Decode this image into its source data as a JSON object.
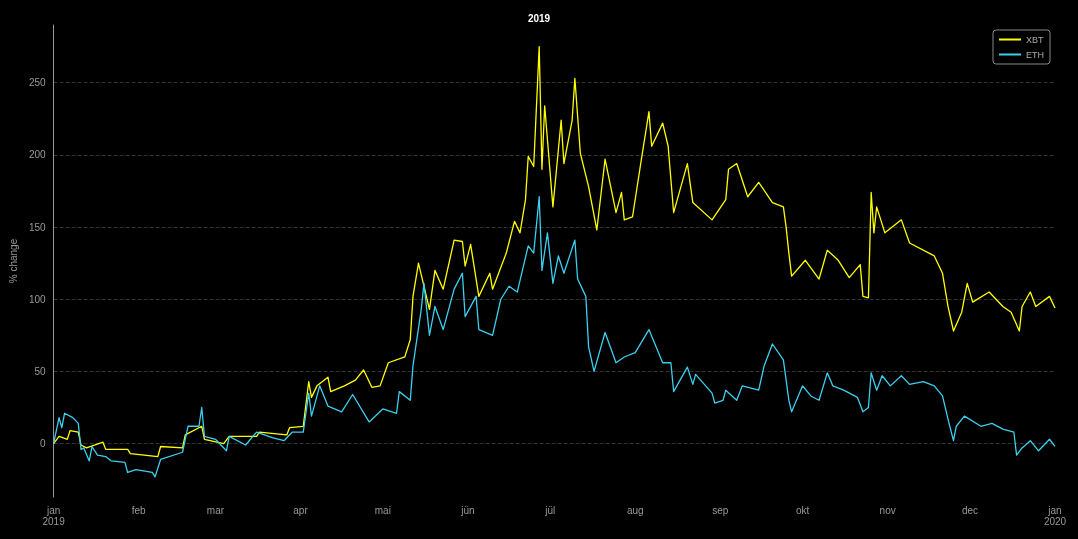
{
  "chart_data": {
    "type": "line",
    "title": "2019",
    "ylabel": "% change",
    "xlim": [
      "2019-01-01",
      "2020-01-01"
    ],
    "xticks": [
      {
        "value": "2019-01-01",
        "label": "jan\n2019"
      },
      {
        "value": "2019-02-01",
        "label": "feb"
      },
      {
        "value": "2019-03-01",
        "label": "mar"
      },
      {
        "value": "2019-04-01",
        "label": "apr"
      },
      {
        "value": "2019-05-01",
        "label": "mai"
      },
      {
        "value": "2019-06-01",
        "label": "jün"
      },
      {
        "value": "2019-07-01",
        "label": "jül"
      },
      {
        "value": "2019-08-01",
        "label": "aug"
      },
      {
        "value": "2019-09-01",
        "label": "sep"
      },
      {
        "value": "2019-10-01",
        "label": "okt"
      },
      {
        "value": "2019-11-01",
        "label": "nov"
      },
      {
        "value": "2019-12-01",
        "label": "dec"
      },
      {
        "value": "2020-01-01",
        "label": "jan\n2020"
      }
    ],
    "ylim": [
      -37,
      290
    ],
    "yticks": [
      0,
      50,
      100,
      150,
      200,
      250
    ],
    "grid": "y",
    "legend": "top right",
    "series": [
      {
        "name": "XBT",
        "color": "#ffff00",
        "x": [
          "2019-01-01",
          "2019-01-03",
          "2019-01-06",
          "2019-01-07",
          "2019-01-10",
          "2019-01-11",
          "2019-01-13",
          "2019-01-19",
          "2019-01-20",
          "2019-01-28",
          "2019-01-29",
          "2019-02-08",
          "2019-02-09",
          "2019-02-17",
          "2019-02-18",
          "2019-02-24",
          "2019-02-25",
          "2019-03-04",
          "2019-03-06",
          "2019-03-16",
          "2019-03-17",
          "2019-03-27",
          "2019-03-28",
          "2019-04-02",
          "2019-04-04",
          "2019-04-05",
          "2019-04-07",
          "2019-04-11",
          "2019-04-12",
          "2019-04-17",
          "2019-04-21",
          "2019-04-24",
          "2019-04-27",
          "2019-04-30",
          "2019-05-03",
          "2019-05-09",
          "2019-05-11",
          "2019-05-12",
          "2019-05-14",
          "2019-05-18",
          "2019-05-20",
          "2019-05-23",
          "2019-05-27",
          "2019-05-30",
          "2019-05-31",
          "2019-06-02",
          "2019-06-05",
          "2019-06-09",
          "2019-06-10",
          "2019-06-15",
          "2019-06-18",
          "2019-06-20",
          "2019-06-22",
          "2019-06-23",
          "2019-06-25",
          "2019-06-27",
          "2019-06-28",
          "2019-06-29",
          "2019-07-02",
          "2019-07-05",
          "2019-07-06",
          "2019-07-09",
          "2019-07-10",
          "2019-07-12",
          "2019-07-15",
          "2019-07-18",
          "2019-07-21",
          "2019-07-25",
          "2019-07-27",
          "2019-07-28",
          "2019-07-31",
          "2019-08-03",
          "2019-08-06",
          "2019-08-07",
          "2019-08-11",
          "2019-08-13",
          "2019-08-15",
          "2019-08-20",
          "2019-08-22",
          "2019-08-29",
          "2019-09-03",
          "2019-09-04",
          "2019-09-07",
          "2019-09-11",
          "2019-09-15",
          "2019-09-20",
          "2019-09-24",
          "2019-09-25",
          "2019-09-26",
          "2019-09-27",
          "2019-10-02",
          "2019-10-07",
          "2019-10-10",
          "2019-10-14",
          "2019-10-18",
          "2019-10-22",
          "2019-10-23",
          "2019-10-25",
          "2019-10-26",
          "2019-10-27",
          "2019-10-28",
          "2019-10-31",
          "2019-11-06",
          "2019-11-09",
          "2019-11-18",
          "2019-11-21",
          "2019-11-23",
          "2019-11-25",
          "2019-11-28",
          "2019-11-30",
          "2019-12-02",
          "2019-12-08",
          "2019-12-13",
          "2019-12-16",
          "2019-12-19",
          "2019-12-20",
          "2019-12-23",
          "2019-12-25",
          "2019-12-30",
          "2020-01-01"
        ],
        "values": [
          0,
          5,
          3,
          9,
          8,
          -1,
          -3,
          1,
          -4,
          -4,
          -7,
          -9,
          -2,
          -3,
          6,
          12,
          3,
          0,
          5,
          5,
          8,
          6,
          11,
          12,
          43,
          32,
          40,
          46,
          36,
          40,
          44,
          51,
          39,
          40,
          56,
          60,
          72,
          102,
          125,
          93,
          120,
          107,
          141,
          140,
          123,
          138,
          102,
          118,
          107,
          132,
          154,
          146,
          169,
          199,
          192,
          275,
          190,
          234,
          164,
          224,
          194,
          224,
          253,
          201,
          178,
          148,
          197,
          160,
          174,
          155,
          157,
          194,
          230,
          206,
          222,
          206,
          160,
          194,
          167,
          155,
          169,
          190,
          194,
          171,
          181,
          167,
          164,
          150,
          132,
          116,
          127,
          114,
          134,
          127,
          115,
          124,
          102,
          101,
          174,
          146,
          164,
          146,
          155,
          139,
          130,
          118,
          95,
          78,
          91,
          111,
          98,
          105,
          95,
          91,
          78,
          95,
          105,
          95,
          102,
          94
        ]
      },
      {
        "name": "ETH",
        "color": "#3ccfee",
        "x": [
          "2019-01-01",
          "2019-01-03",
          "2019-01-04",
          "2019-01-05",
          "2019-01-08",
          "2019-01-10",
          "2019-01-11",
          "2019-01-12",
          "2019-01-14",
          "2019-01-15",
          "2019-01-17",
          "2019-01-20",
          "2019-01-22",
          "2019-01-27",
          "2019-01-28",
          "2019-01-31",
          "2019-02-06",
          "2019-02-07",
          "2019-02-09",
          "2019-02-17",
          "2019-02-19",
          "2019-02-23",
          "2019-02-24",
          "2019-02-25",
          "2019-03-01",
          "2019-03-05",
          "2019-03-06",
          "2019-03-12",
          "2019-03-16",
          "2019-03-22",
          "2019-03-26",
          "2019-03-29",
          "2019-04-02",
          "2019-04-04",
          "2019-04-05",
          "2019-04-08",
          "2019-04-11",
          "2019-04-16",
          "2019-04-20",
          "2019-04-26",
          "2019-05-01",
          "2019-05-06",
          "2019-05-07",
          "2019-05-11",
          "2019-05-12",
          "2019-05-15",
          "2019-05-16",
          "2019-05-18",
          "2019-05-20",
          "2019-05-23",
          "2019-05-27",
          "2019-05-30",
          "2019-05-31",
          "2019-06-04",
          "2019-06-05",
          "2019-06-10",
          "2019-06-13",
          "2019-06-16",
          "2019-06-19",
          "2019-06-23",
          "2019-06-25",
          "2019-06-27",
          "2019-06-28",
          "2019-06-30",
          "2019-07-02",
          "2019-07-04",
          "2019-07-06",
          "2019-07-10",
          "2019-07-11",
          "2019-07-14",
          "2019-07-15",
          "2019-07-17",
          "2019-07-21",
          "2019-07-25",
          "2019-07-28",
          "2019-08-01",
          "2019-08-06",
          "2019-08-11",
          "2019-08-14",
          "2019-08-15",
          "2019-08-20",
          "2019-08-22",
          "2019-08-23",
          "2019-08-29",
          "2019-08-30",
          "2019-09-02",
          "2019-09-03",
          "2019-09-07",
          "2019-09-09",
          "2019-09-15",
          "2019-09-17",
          "2019-09-20",
          "2019-09-24",
          "2019-09-26",
          "2019-09-27",
          "2019-10-01",
          "2019-10-04",
          "2019-10-07",
          "2019-10-10",
          "2019-10-12",
          "2019-10-16",
          "2019-10-21",
          "2019-10-23",
          "2019-10-25",
          "2019-10-26",
          "2019-10-28",
          "2019-10-30",
          "2019-11-02",
          "2019-11-06",
          "2019-11-09",
          "2019-11-14",
          "2019-11-18",
          "2019-11-21",
          "2019-11-23",
          "2019-11-25",
          "2019-11-26",
          "2019-11-29",
          "2019-12-05",
          "2019-12-09",
          "2019-12-13",
          "2019-12-17",
          "2019-12-18",
          "2019-12-20",
          "2019-12-23",
          "2019-12-26",
          "2019-12-30",
          "2020-01-01"
        ],
        "values": [
          0,
          18,
          11,
          21,
          18,
          14,
          -4,
          -3,
          -12,
          -2,
          -8,
          -9,
          -12,
          -13,
          -20,
          -18,
          -20,
          -23,
          -11,
          -6,
          12,
          12,
          25,
          5,
          3,
          -5,
          5,
          -1,
          8,
          4,
          2,
          8,
          8,
          35,
          19,
          40,
          26,
          22,
          34,
          15,
          24,
          21,
          36,
          30,
          54,
          93,
          111,
          75,
          95,
          79,
          107,
          118,
          88,
          102,
          79,
          75,
          100,
          109,
          105,
          137,
          132,
          171,
          120,
          146,
          111,
          130,
          118,
          141,
          114,
          102,
          67,
          50,
          77,
          56,
          60,
          63,
          79,
          56,
          56,
          36,
          53,
          41,
          48,
          35,
          28,
          30,
          37,
          30,
          40,
          37,
          54,
          69,
          58,
          30,
          22,
          40,
          33,
          30,
          49,
          40,
          37,
          32,
          22,
          25,
          49,
          37,
          47,
          40,
          47,
          41,
          43,
          40,
          33,
          17,
          2,
          12,
          19,
          12,
          14,
          10,
          8,
          -8,
          -3,
          2,
          -5,
          3,
          -2
        ]
      }
    ]
  }
}
